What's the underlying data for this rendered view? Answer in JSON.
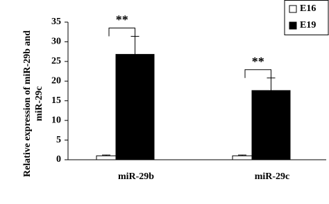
{
  "chart_data": {
    "type": "bar",
    "y_label": [
      "Relative expression of miR-29b and",
      "miR-29c"
    ],
    "categories": [
      "miR-29b",
      "miR-29c"
    ],
    "series": [
      {
        "name": "E16",
        "color": "#ffffff",
        "values": [
          1,
          1
        ],
        "errors": [
          0.2,
          0.2
        ]
      },
      {
        "name": "E19",
        "color": "#000000",
        "values": [
          26.8,
          17.6
        ],
        "errors": [
          4.6,
          3.2
        ]
      }
    ],
    "annotations": [
      "**",
      "**"
    ],
    "ylim": [
      0,
      35
    ],
    "yticks": [
      0,
      5,
      10,
      15,
      20,
      25,
      30,
      35
    ]
  }
}
